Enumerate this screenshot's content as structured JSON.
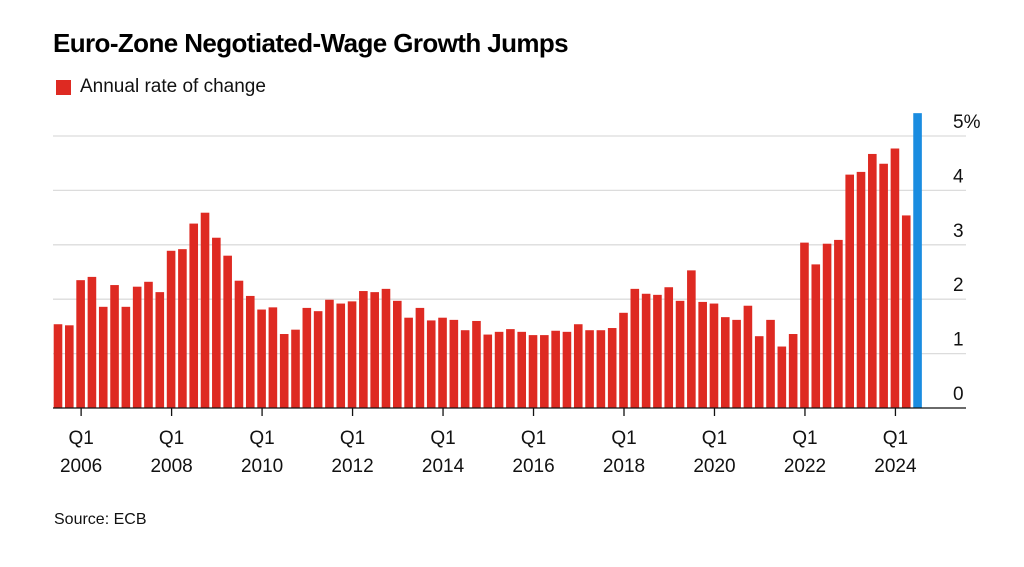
{
  "chart_data": {
    "type": "bar",
    "title": "Euro-Zone Negotiated-Wage Growth Jumps",
    "legend": [
      {
        "label": "Annual rate of change",
        "color": "#de2a22"
      }
    ],
    "legend_position": "top-left",
    "xlabel": "",
    "ylabel": "",
    "ylim": [
      0,
      5
    ],
    "y_ticks": [
      0,
      1,
      2,
      3,
      4,
      5
    ],
    "y_tick_labels": [
      "0",
      "1",
      "2",
      "3",
      "4",
      "5%"
    ],
    "y_axis_side": "right",
    "grid": true,
    "x_start": "Q3 2005",
    "x_end": "Q3 2024",
    "x_tick_labels": [
      {
        "quarter": "Q1",
        "year": "2006",
        "index": 2
      },
      {
        "quarter": "Q1",
        "year": "2008",
        "index": 10
      },
      {
        "quarter": "Q1",
        "year": "2010",
        "index": 18
      },
      {
        "quarter": "Q1",
        "year": "2012",
        "index": 26
      },
      {
        "quarter": "Q1",
        "year": "2014",
        "index": 34
      },
      {
        "quarter": "Q1",
        "year": "2016",
        "index": 42
      },
      {
        "quarter": "Q1",
        "year": "2018",
        "index": 50
      },
      {
        "quarter": "Q1",
        "year": "2020",
        "index": 58
      },
      {
        "quarter": "Q1",
        "year": "2022",
        "index": 66
      },
      {
        "quarter": "Q1",
        "year": "2024",
        "index": 74
      }
    ],
    "bar_color": "#de2a22",
    "highlight_color": "#1a8ce0",
    "highlight_index": 76,
    "values": [
      1.54,
      1.52,
      2.35,
      2.41,
      1.86,
      2.26,
      1.86,
      2.23,
      2.32,
      2.13,
      2.89,
      2.92,
      3.39,
      3.59,
      3.13,
      2.8,
      2.34,
      2.06,
      1.81,
      1.85,
      1.36,
      1.44,
      1.84,
      1.78,
      1.99,
      1.92,
      1.96,
      2.15,
      2.13,
      2.19,
      1.97,
      1.66,
      1.84,
      1.61,
      1.66,
      1.62,
      1.43,
      1.6,
      1.35,
      1.4,
      1.45,
      1.4,
      1.34,
      1.34,
      1.42,
      1.4,
      1.54,
      1.43,
      1.43,
      1.47,
      1.75,
      2.19,
      2.1,
      2.08,
      2.22,
      1.97,
      2.53,
      1.95,
      1.92,
      1.67,
      1.62,
      1.88,
      1.32,
      1.62,
      1.13,
      1.36,
      3.04,
      2.64,
      3.02,
      3.09,
      4.29,
      4.34,
      4.67,
      4.49,
      4.77,
      3.54,
      5.42
    ],
    "source": "Source: ECB"
  }
}
